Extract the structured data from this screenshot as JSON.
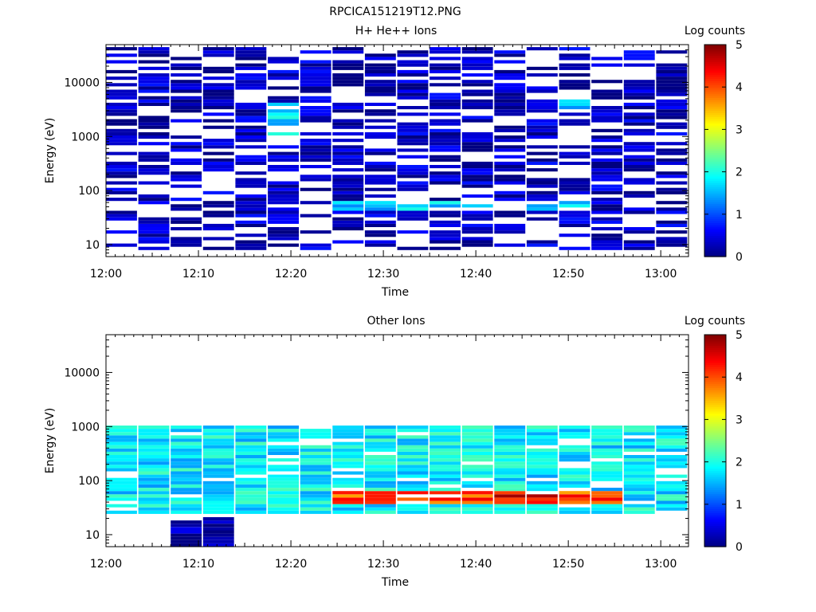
{
  "figure_title": "RPCICA151219T12.PNG",
  "chart_data": [
    {
      "type": "heatmap",
      "title": "H+ He++ Ions",
      "xlabel": "Time",
      "ylabel": "Energy (eV)",
      "x_ticks": [
        "12:00",
        "12:10",
        "12:20",
        "12:30",
        "12:40",
        "12:50",
        "13:00"
      ],
      "x_range_minutes": [
        0,
        63
      ],
      "yscale": "log",
      "ylim": [
        6,
        50000
      ],
      "y_ticks": [
        10,
        100,
        1000,
        10000
      ],
      "y_tick_labels": [
        "10",
        "100",
        "1000",
        "10000"
      ],
      "colorbar": {
        "label": "Log counts",
        "range": [
          0,
          5
        ],
        "ticks": [
          "0",
          "1",
          "2",
          "3",
          "4",
          "5"
        ],
        "colormap": "jet"
      },
      "features": [
        {
          "time_range": [
            "12:00",
            "13:03"
          ],
          "energy_range_eV": [
            8,
            45000
          ],
          "log_counts": 0.3,
          "note": "dense low-count band across all energies"
        },
        {
          "time_range": [
            "12:19",
            "12:22"
          ],
          "energy_range_eV": [
            800,
            4000
          ],
          "log_counts": 1.7
        },
        {
          "time_range": [
            "12:23",
            "12:52"
          ],
          "energy_range_eV": [
            40,
            60
          ],
          "log_counts": 1.6
        },
        {
          "time_range": [
            "12:48",
            "12:54"
          ],
          "energy_range_eV": [
            3000,
            5000
          ],
          "log_counts": 1.4
        }
      ]
    },
    {
      "type": "heatmap",
      "title": "Other Ions",
      "xlabel": "Time",
      "ylabel": "Energy (eV)",
      "x_ticks": [
        "12:00",
        "12:10",
        "12:20",
        "12:30",
        "12:40",
        "12:50",
        "13:00"
      ],
      "x_range_minutes": [
        0,
        63
      ],
      "yscale": "log",
      "ylim": [
        6,
        50000
      ],
      "y_ticks": [
        10,
        100,
        1000,
        10000
      ],
      "y_tick_labels": [
        "10",
        "100",
        "1000",
        "10000"
      ],
      "colorbar": {
        "label": "Log counts",
        "range": [
          0,
          5
        ],
        "ticks": [
          "0",
          "1",
          "2",
          "3",
          "4",
          "5"
        ],
        "colormap": "jet"
      },
      "features": [
        {
          "time_range": [
            "12:00",
            "13:03"
          ],
          "energy_range_eV": [
            25,
            1000
          ],
          "log_counts": 1.8,
          "note": "broad population"
        },
        {
          "time_range": [
            "12:23",
            "12:56"
          ],
          "energy_range_eV": [
            35,
            60
          ],
          "log_counts": 4.0,
          "note": "peak band near 40-50 eV"
        },
        {
          "time_range": [
            "12:42",
            "12:48"
          ],
          "energy_range_eV": [
            45,
            55
          ],
          "log_counts": 4.5
        },
        {
          "time_range": [
            "12:07",
            "12:13"
          ],
          "energy_range_eV": [
            6,
            20
          ],
          "log_counts": 0.1
        }
      ]
    }
  ]
}
